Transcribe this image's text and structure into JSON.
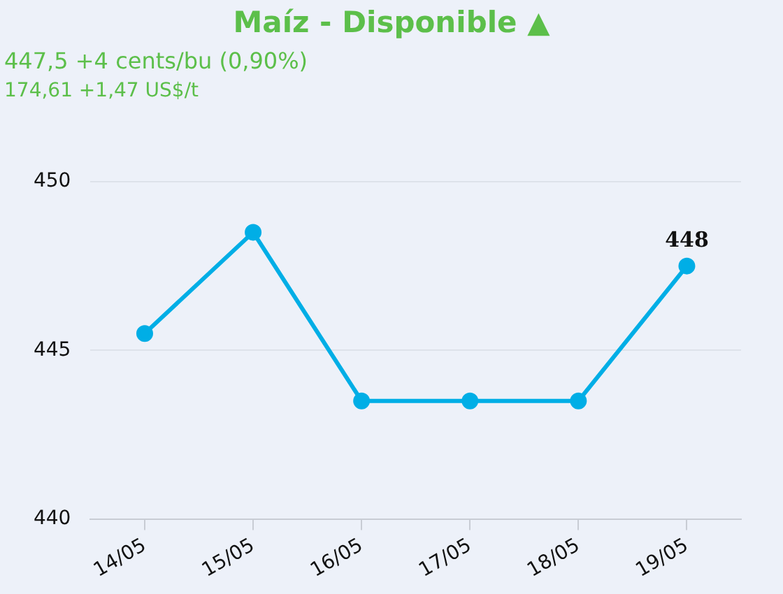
{
  "chart_data": {
    "type": "line",
    "title": "Maíz - Disponible ▲",
    "subtitle": "447,5 +4 cents/bu (0,90%)",
    "annotations": [
      "174,61 +1,47 US$/t"
    ],
    "categories": [
      "14/05",
      "15/05",
      "16/05",
      "17/05",
      "18/05",
      "19/05"
    ],
    "series": [
      {
        "color": "#00aee6",
        "values": [
          445.5,
          448.5,
          443.5,
          443.5,
          443.5,
          447.5
        ],
        "value_labels": [
          null,
          null,
          null,
          null,
          null,
          "448"
        ]
      }
    ],
    "ylim": [
      440,
      450
    ],
    "yticks": [
      440,
      445,
      450
    ],
    "grid": "y",
    "legend": false,
    "marker": "circle",
    "line_style": "solid"
  }
}
